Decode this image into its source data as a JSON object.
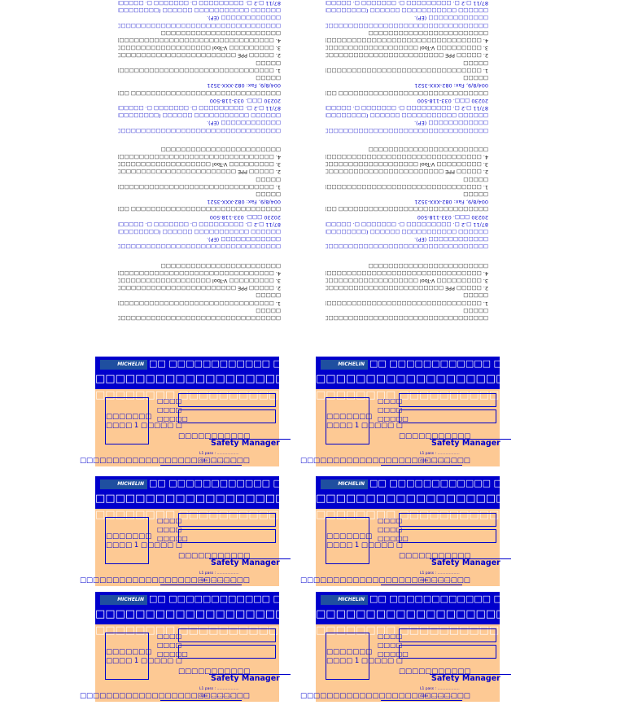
{
  "back": {
    "blocks": [
      {
        "lines": [
          {
            "text": "□□□□□□□□□□□□□□□□□□□□□□□□□□□□□□□□□□□□□□□□□□□□□□",
            "blue": false
          },
          {
            "text": "□□□□□",
            "blue": false
          },
          {
            "text": "1. □□□□□□□□□□□□□□□□□□□□□□□□□□□□□□□□□□□□□□",
            "blue": false
          },
          {
            "text": "□□□□□",
            "blue": false
          },
          {
            "text": "2. □□□□□ PPE □□□□□□□□□□□□□□□□□□□□□□□□□□□□□",
            "blue": false
          },
          {
            "text": "3. □□□□□□□□□ V-Tool □□□□□□□□□□□□□□□□□□□□□",
            "blue": false
          },
          {
            "text": "4. □□□□□□□□□□□□□□□□□□□□□□□□□□□□□□□□□□□□□□□□□",
            "blue": false
          },
          {
            "text": "□□□□□□□□□□□□□□□□□□□□□□□□",
            "blue": false
          }
        ]
      },
      {
        "lines": [
          {
            "text": "□□□□□□□□□□□□□□□□□□□□□□□□□□□□□□□□□□□□□□□□□□□□□□□□",
            "blue": true
          },
          {
            "text": "□□□□□□□□□□□□ (EP).",
            "blue": true
          },
          {
            "text": "□□□□□□ □□□□□□□□□□□ □□□□□□ (□□□□□□□□□)",
            "blue": true
          },
          {
            "text": "87/11 □.2 □. □□□□□□□□□ □. □□□□□□□ □. □□□□□□",
            "blue": true
          },
          {
            "text": "20230 □□□. 033-118-500",
            "blue": true
          },
          {
            "text": "□□□□□□□□□□□□□□□□□□□□□□□□□□□□□□ □□□. 081-",
            "blue": false
          },
          {
            "text": "004/8/9, Fax: 082-XXX-3521",
            "blue": true
          },
          {
            "text": "□□□□□",
            "blue": false
          },
          {
            "text": "1. □□□□□□□□□□□□□□□□□□□□□□□□□□□□□□□□□□□□□□",
            "blue": false
          },
          {
            "text": "□□□□□",
            "blue": false
          },
          {
            "text": "2. □□□□□ PPE □□□□□□□□□□□□□□□□□□□□□□□□□□□□□",
            "blue": false
          },
          {
            "text": "3. □□□□□□□□□ V-Tool □□□□□□□□□□□□□□□□□□□□□",
            "blue": false
          },
          {
            "text": "4. □□□□□□□□□□□□□□□□□□□□□□□□□□□□□□□□□□□□□□□□□",
            "blue": false
          },
          {
            "text": "□□□□□□□□□□□□□□□□□□□□□□□□",
            "blue": false
          }
        ]
      },
      {
        "lines": [
          {
            "text": "□□□□□□□□□□□□□□□□□□□□□□□□□□□□□□□□□□□□□□□□□□□□□□□□",
            "blue": true
          },
          {
            "text": "□□□□□□□□□□□□ (EP).",
            "blue": true
          },
          {
            "text": "□□□□□□ □□□□□□□□□□□ □□□□□□ (□□□□□□□□□)",
            "blue": true
          },
          {
            "text": "87/11 □.2 □. □□□□□□□□□ □. □□□□□□□ □. □□□□□□",
            "blue": true
          },
          {
            "text": "20230 □□□. 033-118-500",
            "blue": true
          },
          {
            "text": "□□□□□□□□□□□□□□□□□□□□□□□□□□□□□□ □□□. 081-",
            "blue": false
          },
          {
            "text": "004/8/9, Fax: 082-XXX-3521",
            "blue": true
          },
          {
            "text": "□□□□□",
            "blue": false
          },
          {
            "text": "1. □□□□□□□□□□□□□□□□□□□□□□□□□□□□□□□□□□□□□□",
            "blue": false
          },
          {
            "text": "□□□□□",
            "blue": false
          },
          {
            "text": "2. □□□□□ PPE □□□□□□□□□□□□□□□□□□□□□□□□□□□□□",
            "blue": false
          },
          {
            "text": "3. □□□□□□□□□ V-Tool □□□□□□□□□□□□□□□□□□□□□",
            "blue": false
          },
          {
            "text": "4. □□□□□□□□□□□□□□□□□□□□□□□□□□□□□□□□□□□□□□□□□",
            "blue": false
          },
          {
            "text": "□□□□□□□□□□□□□□□□□□□□□□□□",
            "blue": false
          },
          {
            "text": "□□□□□□□□□□□□□□□□□□□□□□□□□□□□□□□□□□□□□□□□□□□□□□□□",
            "blue": true
          },
          {
            "text": "□□□□□□□□□□□□ (EP).",
            "blue": true
          },
          {
            "text": "□□□□□□ □□□□□□□□□□□ □□□□□□ (□□□□□□□□□)",
            "blue": true
          },
          {
            "text": "87/11 □.2 □. □□□□□□□□□ □. □□□□□□□ □. □□□□□□",
            "blue": true
          }
        ]
      }
    ]
  },
  "card": {
    "logo": "MICHELIN",
    "header": "□□ □□□□□□□□□□□□ □□□□□□□ (□□□□",
    "title": "□□□□□□□□□□□□□□□□□□□□□□□□□□□□□□□",
    "subtitle": "□□□□□□□□ □□□□□□□□□□□□□□□□□□□□□□",
    "photo": [
      "□□□□□□□",
      "□□□□ 1 □□□□□ □"
    ],
    "fields": [
      "□□□□",
      "□□□□",
      "□□□□□"
    ],
    "signature": "□□□□□□□□□□□",
    "role": "Safety Manager",
    "footer": "□□□□□□□□□□□□□□□□□□□□□□□□□□",
    "small1": "L1 pass : ...................",
    "small2": "date : .................."
  }
}
